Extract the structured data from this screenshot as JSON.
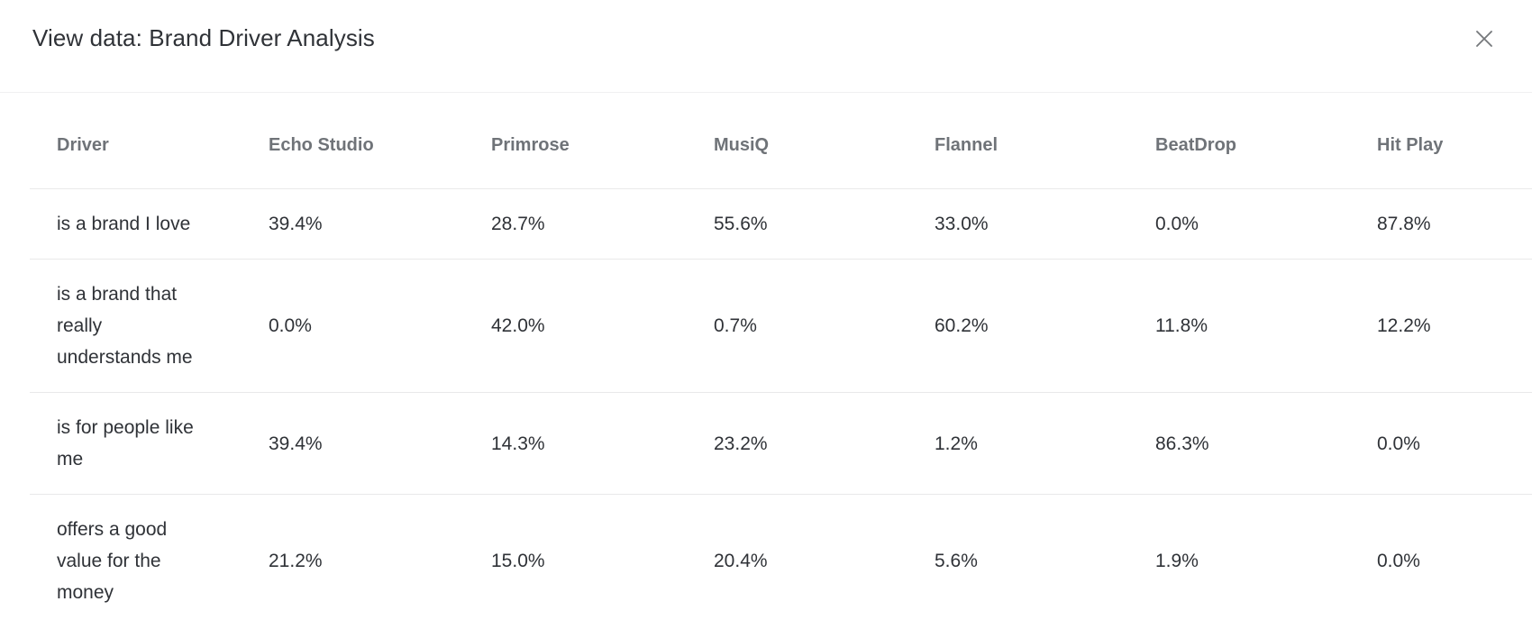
{
  "modal": {
    "title": "View data: Brand Driver Analysis",
    "close_icon": "close-icon"
  },
  "table": {
    "columns": [
      "Driver",
      "Echo Studio",
      "Primrose",
      "MusiQ",
      "Flannel",
      "BeatDrop",
      "Hit Play"
    ],
    "rows": [
      {
        "driver": "is a brand I love",
        "values": [
          "39.4%",
          "28.7%",
          "55.6%",
          "33.0%",
          "0.0%",
          "87.8%"
        ]
      },
      {
        "driver": "is a brand that really understands me",
        "values": [
          "0.0%",
          "42.0%",
          "0.7%",
          "60.2%",
          "11.8%",
          "12.2%"
        ]
      },
      {
        "driver": "is for people like me",
        "values": [
          "39.4%",
          "14.3%",
          "23.2%",
          "1.2%",
          "86.3%",
          "0.0%"
        ]
      },
      {
        "driver": "offers a good value for the money",
        "values": [
          "21.2%",
          "15.0%",
          "20.4%",
          "5.6%",
          "1.9%",
          "0.0%"
        ]
      }
    ]
  },
  "colors": {
    "background": "#ffffff",
    "title_text": "#2f3237",
    "header_text": "#6f7378",
    "cell_text": "#2f3237",
    "divider": "#e9e9ea",
    "header_divider": "#f0f0f1",
    "close_icon": "#75787b"
  }
}
